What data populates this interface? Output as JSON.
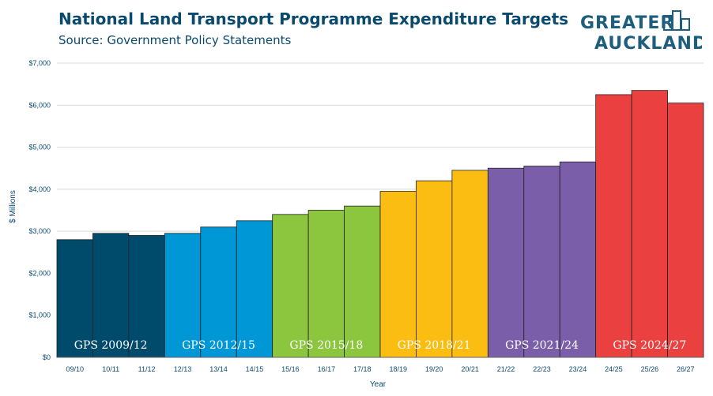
{
  "header": {
    "title": "National Land Transport Programme Expenditure Targets",
    "subtitle": "Source: Government Policy Statements"
  },
  "logo": {
    "line1": "GREATER",
    "line2": "AUCKLAND",
    "icon": "city-buildings-icon",
    "color": "#1d5d7e"
  },
  "chart_data": {
    "type": "bar",
    "title": "National Land Transport Programme Expenditure Targets",
    "subtitle": "Source: Government Policy Statements",
    "xlabel": "Year",
    "ylabel": "$ Millions",
    "ylim": [
      0,
      7000
    ],
    "yticks": [
      0,
      1000,
      2000,
      3000,
      4000,
      5000,
      6000,
      7000
    ],
    "ytick_labels": [
      "$0",
      "$1,000",
      "$2,000",
      "$3,000",
      "$4,000",
      "$5,000",
      "$6,000",
      "$7,000"
    ],
    "grid": true,
    "categories": [
      "09/10",
      "10/11",
      "11/12",
      "12/13",
      "13/14",
      "14/15",
      "15/16",
      "16/17",
      "17/18",
      "18/19",
      "19/20",
      "20/21",
      "21/22",
      "22/23",
      "23/24",
      "24/25",
      "25/26",
      "26/27"
    ],
    "values": [
      2800,
      2950,
      2900,
      2950,
      3100,
      3250,
      3400,
      3500,
      3600,
      3950,
      4200,
      4450,
      4500,
      4550,
      4650,
      6250,
      6350,
      6050
    ],
    "groups": [
      {
        "label": "GPS 2009/12",
        "color": "#004b6c",
        "count": 3
      },
      {
        "label": "GPS 2012/15",
        "color": "#0097d6",
        "count": 3
      },
      {
        "label": "GPS 2015/18",
        "color": "#8cc63f",
        "count": 3
      },
      {
        "label": "GPS 2018/21",
        "color": "#fbbd12",
        "count": 3
      },
      {
        "label": "GPS 2021/24",
        "color": "#7b5ea9",
        "count": 3
      },
      {
        "label": "GPS 2024/27",
        "color": "#ea4140",
        "count": 3
      }
    ]
  }
}
